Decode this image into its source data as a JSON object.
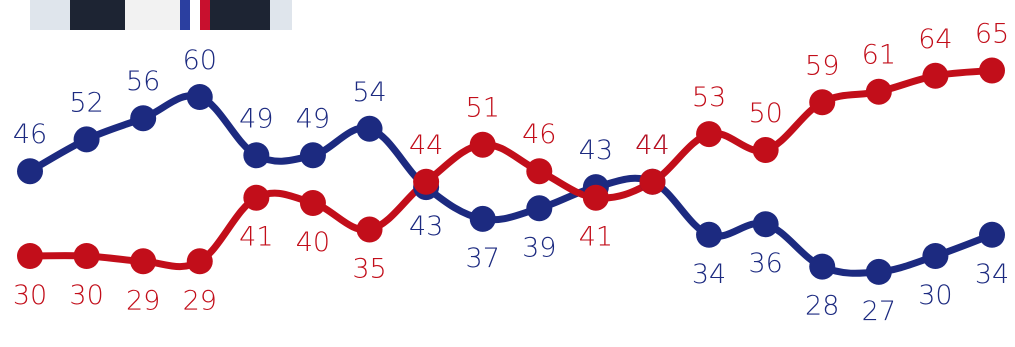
{
  "chart_data": {
    "type": "line",
    "title": "",
    "xlabel": "",
    "ylabel": "",
    "grid": false,
    "legend": "none",
    "x": [
      1,
      2,
      3,
      4,
      5,
      6,
      7,
      8,
      9,
      10,
      11,
      12,
      13,
      14,
      15,
      16,
      17,
      18
    ],
    "ylim": [
      20,
      70
    ],
    "series": [
      {
        "color": "#1c2a80",
        "values": [
          46,
          52,
          56,
          60,
          49,
          49,
          54,
          43,
          37,
          39,
          43,
          44,
          34,
          36,
          28,
          27,
          30,
          34
        ]
      },
      {
        "color": "#c20e1a",
        "values": [
          30,
          30,
          29,
          29,
          41,
          40,
          35,
          44,
          51,
          46,
          41,
          44,
          53,
          50,
          59,
          61,
          64,
          65
        ]
      }
    ]
  },
  "photo": {
    "description_icon": "portrait-photo-icon"
  }
}
